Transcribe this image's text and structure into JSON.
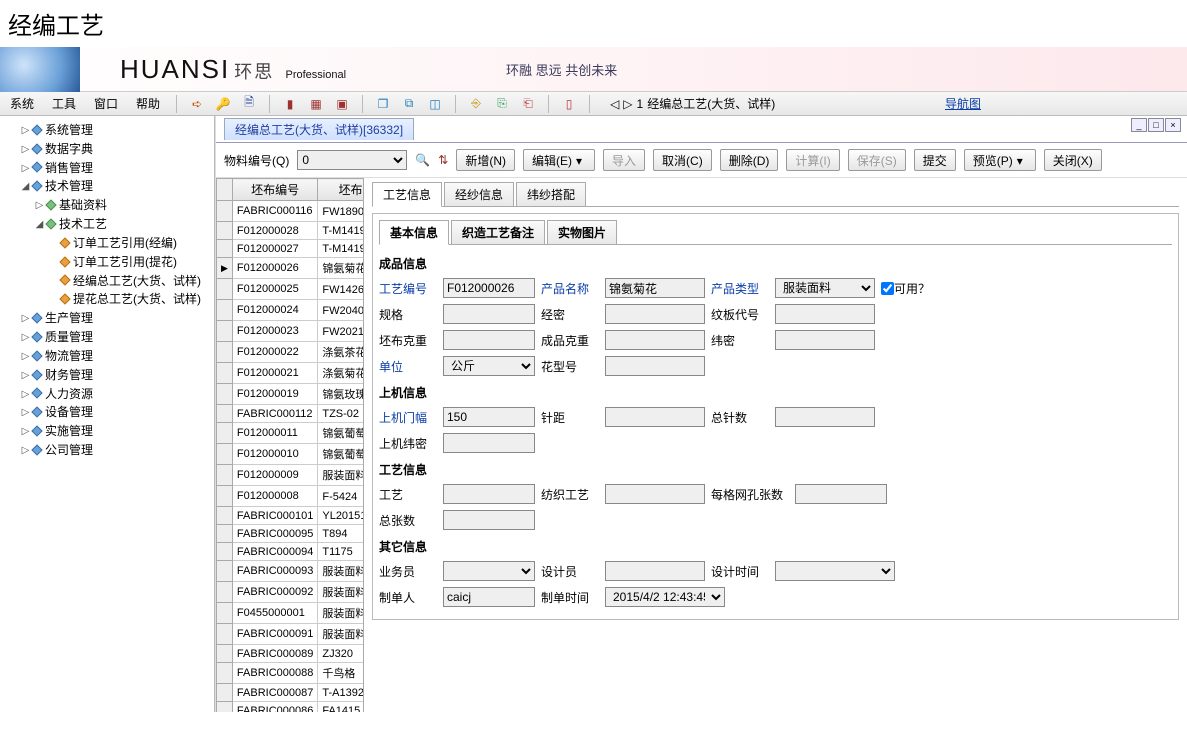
{
  "page_title": "经编工艺",
  "banner": {
    "logo": "HUANSI",
    "logo_cn": "环思",
    "logo_sub": "Professional",
    "slogan": "环融 思远 共创未来"
  },
  "menubar": {
    "menus": [
      "系统",
      "工具",
      "窗口",
      "帮助"
    ],
    "trail_prefix": "1",
    "trail_text": "经编总工艺(大货、试样)",
    "nav_link": "导航图"
  },
  "tree": [
    {
      "label": "系统管理",
      "level": 1,
      "tw": "▷"
    },
    {
      "label": "数据字典",
      "level": 1,
      "tw": "▷"
    },
    {
      "label": "销售管理",
      "level": 1,
      "tw": "▷"
    },
    {
      "label": "技术管理",
      "level": 1,
      "tw": "◢",
      "children": [
        {
          "label": "基础资料",
          "level": 2,
          "tw": "▷"
        },
        {
          "label": "技术工艺",
          "level": 2,
          "tw": "◢",
          "children": [
            {
              "label": "订单工艺引用(经编)",
              "level": 3,
              "tw": ""
            },
            {
              "label": "订单工艺引用(提花)",
              "level": 3,
              "tw": ""
            },
            {
              "label": "经编总工艺(大货、试样)",
              "level": 3,
              "tw": ""
            },
            {
              "label": "提花总工艺(大货、试样)",
              "level": 3,
              "tw": ""
            }
          ]
        }
      ]
    },
    {
      "label": "生产管理",
      "level": 1,
      "tw": "▷"
    },
    {
      "label": "质量管理",
      "level": 1,
      "tw": "▷"
    },
    {
      "label": "物流管理",
      "level": 1,
      "tw": "▷"
    },
    {
      "label": "财务管理",
      "level": 1,
      "tw": "▷"
    },
    {
      "label": "人力资源",
      "level": 1,
      "tw": "▷"
    },
    {
      "label": "设备管理",
      "level": 1,
      "tw": "▷"
    },
    {
      "label": "实施管理",
      "level": 1,
      "tw": "▷"
    },
    {
      "label": "公司管理",
      "level": 1,
      "tw": "▷"
    }
  ],
  "doc": {
    "title": "经编总工艺(大货、试样)",
    "count": "[36332]"
  },
  "toolbar": {
    "material_label": "物料编号(Q)",
    "material_value": "0",
    "buttons": {
      "add": "新增(N)",
      "edit": "编辑(E)",
      "import": "导入",
      "cancel": "取消(C)",
      "delete": "删除(D)",
      "calc": "计算(I)",
      "save": "保存(S)",
      "submit": "提交",
      "preview": "预览(P)",
      "close": "关闭(X)"
    }
  },
  "grid": {
    "headers": [
      "坯布编号",
      "坯布"
    ],
    "selected_index": 3,
    "rows": [
      [
        "FABRIC000116",
        "FW1890（"
      ],
      [
        "F012000028",
        "T-M1419/"
      ],
      [
        "F012000027",
        "T-M1419/"
      ],
      [
        "F012000026",
        "锦氨菊花"
      ],
      [
        "F012000025",
        "FW1426(纬"
      ],
      [
        "F012000024",
        "FW2040(纬"
      ],
      [
        "F012000023",
        "FW2021(自"
      ],
      [
        "F012000022",
        "涤氨茶花"
      ],
      [
        "F012000021",
        "涤氨菊花"
      ],
      [
        "F012000019",
        "锦氨玫瑰"
      ],
      [
        "FABRIC000112",
        "TZS-02"
      ],
      [
        "F012000011",
        "锦氨葡萄"
      ],
      [
        "F012000010",
        "锦氨葡萄"
      ],
      [
        "F012000009",
        "服装面料"
      ],
      [
        "F012000008",
        "F-5424（"
      ],
      [
        "FABRIC000101",
        "YL201515"
      ],
      [
        "FABRIC000095",
        "T894"
      ],
      [
        "FABRIC000094",
        "T1175"
      ],
      [
        "FABRIC000093",
        "服装面料"
      ],
      [
        "FABRIC000092",
        "服装面料"
      ],
      [
        "F0455000001",
        "服装面料"
      ],
      [
        "FABRIC000091",
        "服装面料"
      ],
      [
        "FABRIC000089",
        "ZJ320"
      ],
      [
        "FABRIC000088",
        "千鸟格"
      ],
      [
        "FABRIC000087",
        "T-A1392"
      ],
      [
        "FABRIC000086",
        "FA1415"
      ]
    ]
  },
  "outer_tabs": [
    "工艺信息",
    "经纱信息",
    "纬纱搭配"
  ],
  "inner_tabs": [
    "基本信息",
    "织造工艺备注",
    "实物图片"
  ],
  "form": {
    "sec1": "成品信息",
    "sec2": "上机信息",
    "sec3": "工艺信息",
    "sec4": "其它信息",
    "labels": {
      "code": "工艺编号",
      "name": "产品名称",
      "type": "产品类型",
      "avail": "可用？",
      "spec": "规格",
      "density": "经密",
      "pattern": "纹板代号",
      "gray_wt": "坯布克重",
      "fin_wt": "成品克重",
      "weft_density": "纬密",
      "unit": "单位",
      "flower": "花型号",
      "mach_width": "上机门幅",
      "needle": "针距",
      "total_needle": "总针数",
      "mach_weft": "上机纬密",
      "craft": "工艺",
      "weave_craft": "纺织工艺",
      "mesh": "每格网孔张数",
      "total_sheets": "总张数",
      "sales": "业务员",
      "designer": "设计员",
      "design_time": "设计时间",
      "creator": "制单人",
      "create_time": "制单时间"
    },
    "values": {
      "code": "F012000026",
      "name": "锦氨菊花",
      "type": "服装面料",
      "avail": true,
      "unit": "公斤",
      "mach_width": "150",
      "creator": "caicj",
      "create_time": "2015/4/2 12:43:45"
    }
  },
  "colors": {
    "link": "#0b3ea8",
    "border": "#999999"
  }
}
